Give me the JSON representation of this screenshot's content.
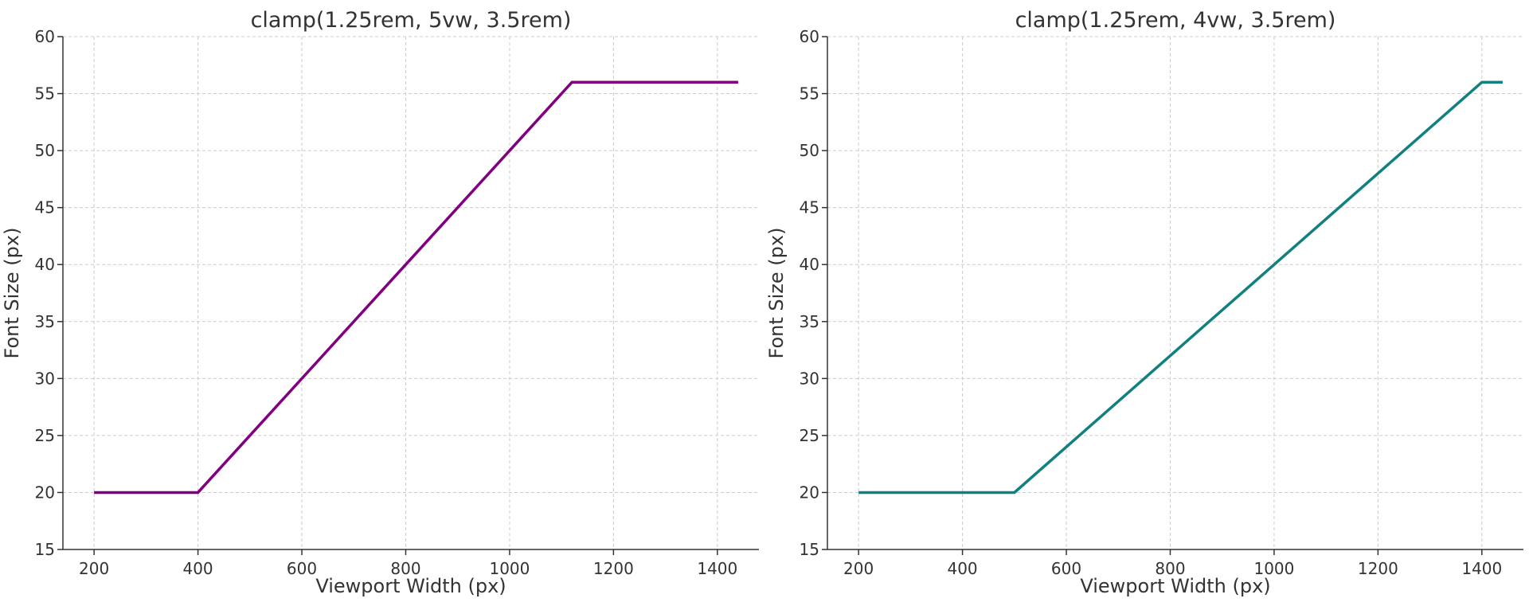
{
  "chart_data": [
    {
      "type": "line",
      "title": "clamp(1.25rem, 5vw, 3.5rem)",
      "xlabel": "Viewport Width (px)",
      "ylabel": "Font Size (px)",
      "xlim": [
        140,
        1480
      ],
      "ylim": [
        15,
        60
      ],
      "xticks": [
        200,
        400,
        600,
        800,
        1000,
        1200,
        1400
      ],
      "yticks": [
        15,
        20,
        25,
        30,
        35,
        40,
        45,
        50,
        55,
        60
      ],
      "grid": true,
      "series": [
        {
          "color": "#800080",
          "x": [
            200,
            400,
            1120,
            1440
          ],
          "y": [
            20,
            20,
            56,
            56
          ]
        }
      ]
    },
    {
      "type": "line",
      "title": "clamp(1.25rem, 4vw, 3.5rem)",
      "xlabel": "Viewport Width (px)",
      "ylabel": "Font Size (px)",
      "xlim": [
        140,
        1480
      ],
      "ylim": [
        15,
        60
      ],
      "xticks": [
        200,
        400,
        600,
        800,
        1000,
        1200,
        1400
      ],
      "yticks": [
        15,
        20,
        25,
        30,
        35,
        40,
        45,
        50,
        55,
        60
      ],
      "grid": true,
      "series": [
        {
          "color": "#138080",
          "x": [
            200,
            500,
            1400,
            1440
          ],
          "y": [
            20,
            20,
            56,
            56
          ]
        }
      ]
    }
  ]
}
